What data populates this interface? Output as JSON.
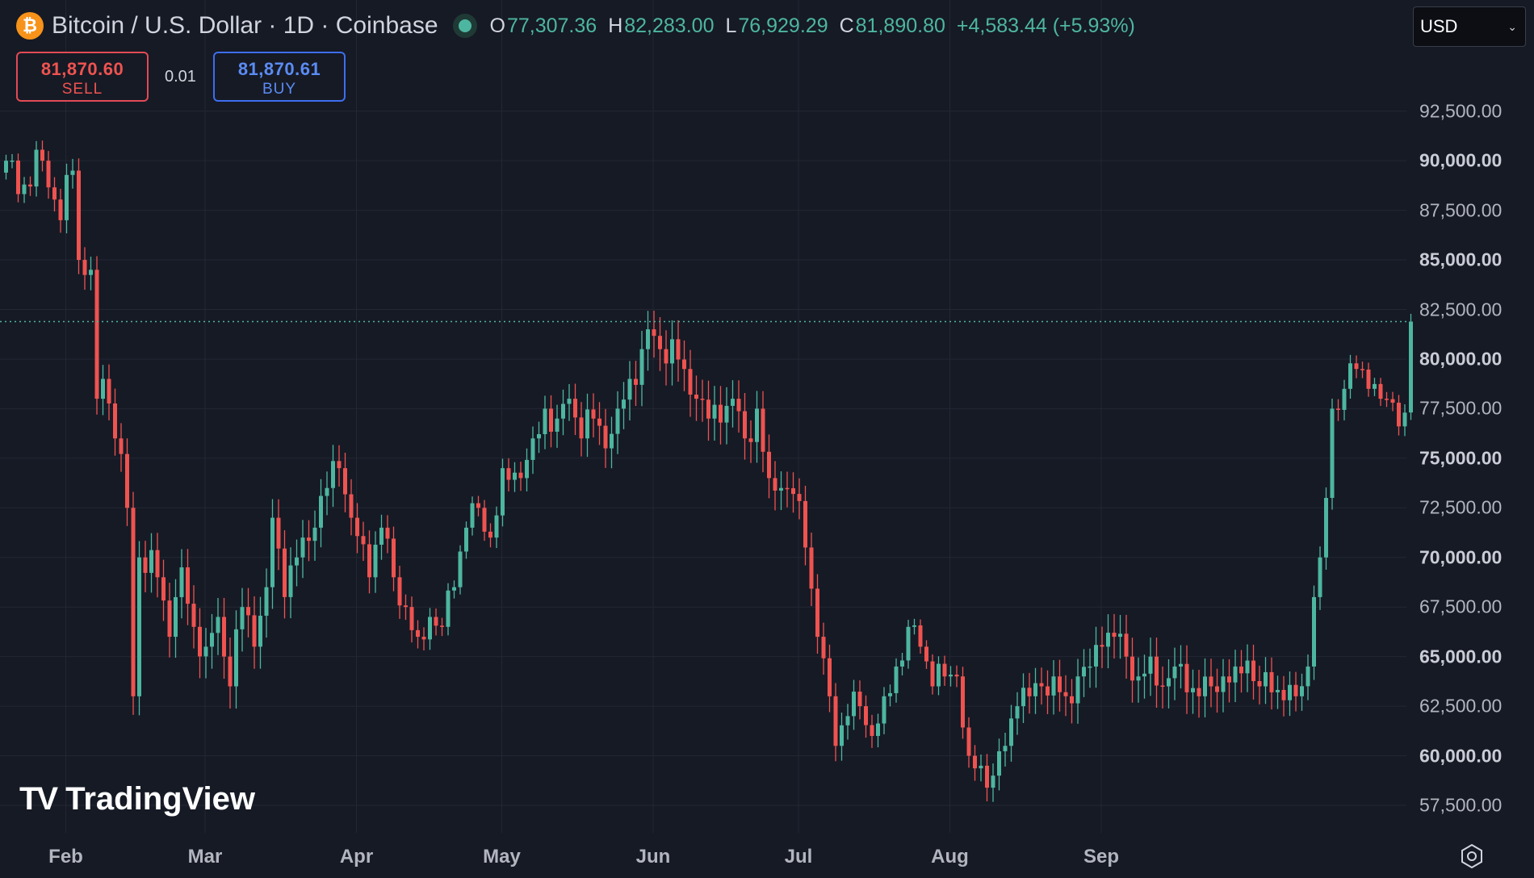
{
  "header": {
    "title": "Bitcoin / U.S. Dollar · 1D · Coinbase",
    "coin_icon": "bitcoin-icon",
    "ohlc": {
      "open_label": "O",
      "open": "77,307.36",
      "high_label": "H",
      "high": "82,283.00",
      "low_label": "L",
      "low": "76,929.29",
      "close_label": "C",
      "close": "81,890.80",
      "change": "+4,583.44 (+5.93%)"
    }
  },
  "trade": {
    "sell_price": "81,870.60",
    "sell_label": "SELL",
    "spread": "0.01",
    "buy_price": "81,870.61",
    "buy_label": "BUY"
  },
  "currency": {
    "selected": "USD"
  },
  "logo": {
    "text": "TradingView"
  },
  "colors": {
    "up": "#4db6a0",
    "down": "#ef5350",
    "background": "#161a25",
    "grid": "#232733",
    "sell": "#ef5350",
    "buy": "#5b8cf5"
  },
  "chart_data": {
    "type": "candlestick",
    "price_scale": [
      "92,500.00",
      "90,000.00",
      "87,500.00",
      "85,000.00",
      "82,500.00",
      "80,000.00",
      "77,500.00",
      "75,000.00",
      "72,500.00",
      "70,000.00",
      "67,500.00",
      "65,000.00",
      "62,500.00",
      "60,000.00",
      "57,500.00"
    ],
    "bold_price_labels": [
      "90,000.00",
      "85,000.00",
      "80,000.00",
      "75,000.00",
      "70,000.00",
      "65,000.00",
      "60,000.00"
    ],
    "time_scale": [
      "Feb",
      "Mar",
      "Apr",
      "May",
      "Jun",
      "Jul",
      "Aug",
      "Sep"
    ],
    "ylim": [
      56500,
      95000
    ],
    "last_price": 81890.8,
    "grid": true,
    "close_path": [
      [
        0,
        90000
      ],
      [
        3,
        88800
      ],
      [
        6,
        90000
      ],
      [
        9,
        87000
      ],
      [
        11,
        89500
      ],
      [
        12,
        85000
      ],
      [
        14,
        84500
      ],
      [
        15,
        78000
      ],
      [
        16,
        79000
      ],
      [
        18,
        76000
      ],
      [
        20,
        72500
      ],
      [
        21,
        63000
      ],
      [
        22,
        70000
      ],
      [
        25,
        69000
      ],
      [
        27,
        66000
      ],
      [
        29,
        69500
      ],
      [
        31,
        66500
      ],
      [
        33,
        65500
      ],
      [
        35,
        67000
      ],
      [
        37,
        63500
      ],
      [
        39,
        67500
      ],
      [
        41,
        65500
      ],
      [
        43,
        68500
      ],
      [
        44,
        72000
      ],
      [
        46,
        68000
      ],
      [
        48,
        70000
      ],
      [
        51,
        71500
      ],
      [
        53,
        73500
      ],
      [
        55,
        74500
      ],
      [
        57,
        72000
      ],
      [
        60,
        69000
      ],
      [
        62,
        71500
      ],
      [
        64,
        69000
      ],
      [
        66,
        67500
      ],
      [
        68,
        66000
      ],
      [
        70,
        67000
      ],
      [
        72,
        66500
      ],
      [
        74,
        68500
      ],
      [
        76,
        71500
      ],
      [
        78,
        72500
      ],
      [
        80,
        71000
      ],
      [
        82,
        74500
      ],
      [
        85,
        74000
      ],
      [
        87,
        76000
      ],
      [
        89,
        77500
      ],
      [
        91,
        77000
      ],
      [
        93,
        78000
      ],
      [
        95,
        76000
      ],
      [
        97,
        77000
      ],
      [
        99,
        75500
      ],
      [
        101,
        77500
      ],
      [
        103,
        79000
      ],
      [
        105,
        80500
      ],
      [
        106,
        81500
      ],
      [
        108,
        80500
      ],
      [
        110,
        81000
      ],
      [
        112,
        79500
      ],
      [
        114,
        78000
      ],
      [
        116,
        77000
      ],
      [
        118,
        76800
      ],
      [
        120,
        78000
      ],
      [
        122,
        76000
      ],
      [
        124,
        77500
      ],
      [
        126,
        74000
      ],
      [
        128,
        73500
      ],
      [
        130,
        73200
      ],
      [
        132,
        70500
      ],
      [
        134,
        66000
      ],
      [
        136,
        63000
      ],
      [
        137,
        60500
      ],
      [
        139,
        62000
      ],
      [
        141,
        62500
      ],
      [
        143,
        61000
      ],
      [
        145,
        63000
      ],
      [
        147,
        64500
      ],
      [
        149,
        66500
      ],
      [
        151,
        65500
      ],
      [
        153,
        63500
      ],
      [
        155,
        64000
      ],
      [
        157,
        64000
      ],
      [
        159,
        60000
      ],
      [
        161,
        59500
      ],
      [
        163,
        59000
      ],
      [
        165,
        60500
      ],
      [
        167,
        62500
      ],
      [
        169,
        63000
      ],
      [
        171,
        63500
      ],
      [
        173,
        64000
      ],
      [
        175,
        63000
      ],
      [
        177,
        64000
      ],
      [
        179,
        64500
      ],
      [
        181,
        65500
      ],
      [
        183,
        66000
      ],
      [
        185,
        65000
      ],
      [
        187,
        64000
      ],
      [
        189,
        65000
      ],
      [
        191,
        63500
      ],
      [
        193,
        64500
      ],
      [
        195,
        63200
      ],
      [
        197,
        63000
      ],
      [
        199,
        63500
      ],
      [
        201,
        64000
      ],
      [
        203,
        64500
      ],
      [
        205,
        64800
      ],
      [
        207,
        63500
      ],
      [
        209,
        63200
      ],
      [
        211,
        62800
      ],
      [
        213,
        63000
      ],
      [
        215,
        64500
      ],
      [
        216,
        68000
      ],
      [
        217,
        70000
      ],
      [
        218,
        73000
      ],
      [
        219,
        77500
      ],
      [
        221,
        78500
      ],
      [
        223,
        79500
      ],
      [
        225,
        78500
      ],
      [
        227,
        78000
      ],
      [
        229,
        77800
      ],
      [
        231,
        77300
      ],
      [
        232,
        81890
      ]
    ]
  }
}
